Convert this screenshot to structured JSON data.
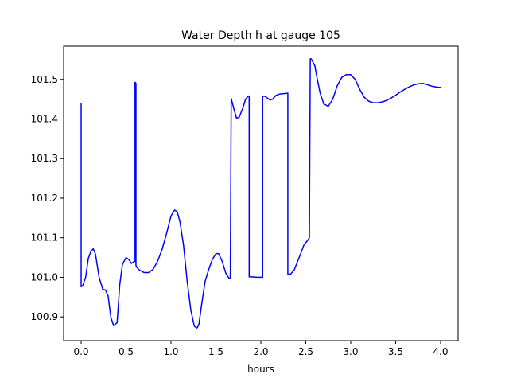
{
  "chart_data": {
    "type": "line",
    "title": "Water Depth h at gauge 105",
    "xlabel": "hours",
    "ylabel": "",
    "xlim": [
      -0.195,
      4.195
    ],
    "ylim": [
      100.84,
      101.584
    ],
    "xticks": [
      0.0,
      0.5,
      1.0,
      1.5,
      2.0,
      2.5,
      3.0,
      3.5,
      4.0
    ],
    "xtick_labels": [
      "0.0",
      "0.5",
      "1.0",
      "1.5",
      "2.0",
      "2.5",
      "3.0",
      "3.5",
      "4.0"
    ],
    "yticks": [
      100.9,
      101.0,
      101.1,
      101.2,
      101.3,
      101.4,
      101.5
    ],
    "ytick_labels": [
      "100.9",
      "101.0",
      "101.1",
      "101.2",
      "101.3",
      "101.4",
      "101.5"
    ],
    "grid": false,
    "legend": "none",
    "series": [
      {
        "color": "#0000ff",
        "x": [
          0.0,
          0.0,
          0.0,
          0.02,
          0.05,
          0.08,
          0.11,
          0.135,
          0.16,
          0.2,
          0.24,
          0.27,
          0.3,
          0.33,
          0.36,
          0.4,
          0.43,
          0.46,
          0.5,
          0.53,
          0.56,
          0.59,
          0.6,
          0.6,
          0.61,
          0.61,
          0.62,
          0.65,
          0.7,
          0.75,
          0.8,
          0.85,
          0.9,
          0.95,
          1.0,
          1.04,
          1.07,
          1.1,
          1.14,
          1.18,
          1.22,
          1.26,
          1.29,
          1.31,
          1.34,
          1.38,
          1.42,
          1.46,
          1.5,
          1.53,
          1.57,
          1.61,
          1.645,
          1.66,
          1.67,
          1.67,
          1.7,
          1.73,
          1.76,
          1.8,
          1.83,
          1.86,
          1.87,
          1.87,
          1.9,
          1.95,
          1.995,
          2.02,
          2.02,
          2.05,
          2.1,
          2.13,
          2.17,
          2.21,
          2.3,
          2.3,
          2.33,
          2.37,
          2.4,
          2.44,
          2.48,
          2.52,
          2.54,
          2.55,
          2.56,
          2.6,
          2.62,
          2.66,
          2.7,
          2.75,
          2.8,
          2.85,
          2.9,
          2.95,
          3.0,
          3.05,
          3.1,
          3.15,
          3.2,
          3.25,
          3.3,
          3.35,
          3.4,
          3.45,
          3.5,
          3.55,
          3.6,
          3.65,
          3.7,
          3.75,
          3.8,
          3.85,
          3.9,
          3.95,
          3.98,
          4.0
        ],
        "y": [
          101.44,
          100.976,
          100.976,
          100.98,
          101.0,
          101.048,
          101.066,
          101.072,
          101.058,
          101.0,
          100.97,
          100.968,
          100.953,
          100.9,
          100.878,
          100.885,
          100.982,
          101.033,
          101.05,
          101.045,
          101.035,
          101.04,
          101.04,
          101.493,
          101.49,
          101.03,
          101.025,
          101.018,
          101.012,
          101.012,
          101.02,
          101.04,
          101.07,
          101.11,
          101.155,
          101.17,
          101.165,
          101.14,
          101.08,
          100.99,
          100.918,
          100.876,
          100.872,
          100.88,
          100.93,
          100.99,
          101.02,
          101.045,
          101.06,
          101.06,
          101.04,
          101.01,
          100.998,
          100.997,
          101.452,
          101.452,
          101.425,
          101.402,
          101.405,
          101.428,
          101.45,
          101.458,
          101.458,
          101.001,
          101.001,
          101.0,
          101.0,
          101.0,
          101.458,
          101.457,
          101.448,
          101.45,
          101.46,
          101.463,
          101.465,
          101.008,
          101.008,
          101.018,
          101.035,
          101.058,
          101.082,
          101.093,
          101.1,
          101.552,
          101.552,
          101.535,
          101.51,
          101.465,
          101.438,
          101.432,
          101.45,
          101.484,
          101.505,
          101.512,
          101.512,
          101.5,
          101.475,
          101.455,
          101.445,
          101.441,
          101.441,
          101.443,
          101.447,
          101.453,
          101.46,
          101.468,
          101.475,
          101.481,
          101.486,
          101.489,
          101.49,
          101.487,
          101.483,
          101.481,
          101.48,
          101.48
        ]
      }
    ]
  }
}
